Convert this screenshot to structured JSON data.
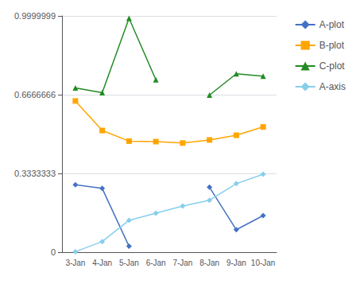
{
  "chart_data": {
    "type": "line",
    "categories": [
      "3-Jan",
      "4-Jan",
      "5-Jan",
      "6-Jan",
      "7-Jan",
      "8-Jan",
      "9-Jan",
      "10-Jan"
    ],
    "series": [
      {
        "name": "A-plot",
        "color": "#4472C4",
        "marker": "diamond",
        "values": [
          0.285,
          0.27,
          0.025,
          null,
          null,
          0.275,
          0.095,
          0.155
        ]
      },
      {
        "name": "B-plot",
        "color": "#FFA500",
        "marker": "square",
        "values": [
          0.64,
          0.515,
          0.47,
          0.468,
          0.462,
          0.475,
          0.495,
          0.53
        ]
      },
      {
        "name": "C-plot",
        "color": "#228B22",
        "marker": "triangle",
        "values": [
          0.695,
          0.675,
          0.99,
          0.73,
          null,
          0.665,
          0.755,
          0.745
        ]
      },
      {
        "name": "A-axis",
        "color": "#87CEEB",
        "marker": "diamond",
        "values": [
          0.002,
          0.045,
          0.135,
          0.165,
          0.195,
          0.22,
          0.29,
          0.33
        ]
      }
    ],
    "ylim": [
      0,
      1.0
    ],
    "yticks": [
      0,
      0.3333333,
      0.6666666,
      0.9999999
    ],
    "grid": true,
    "legend": "right"
  }
}
